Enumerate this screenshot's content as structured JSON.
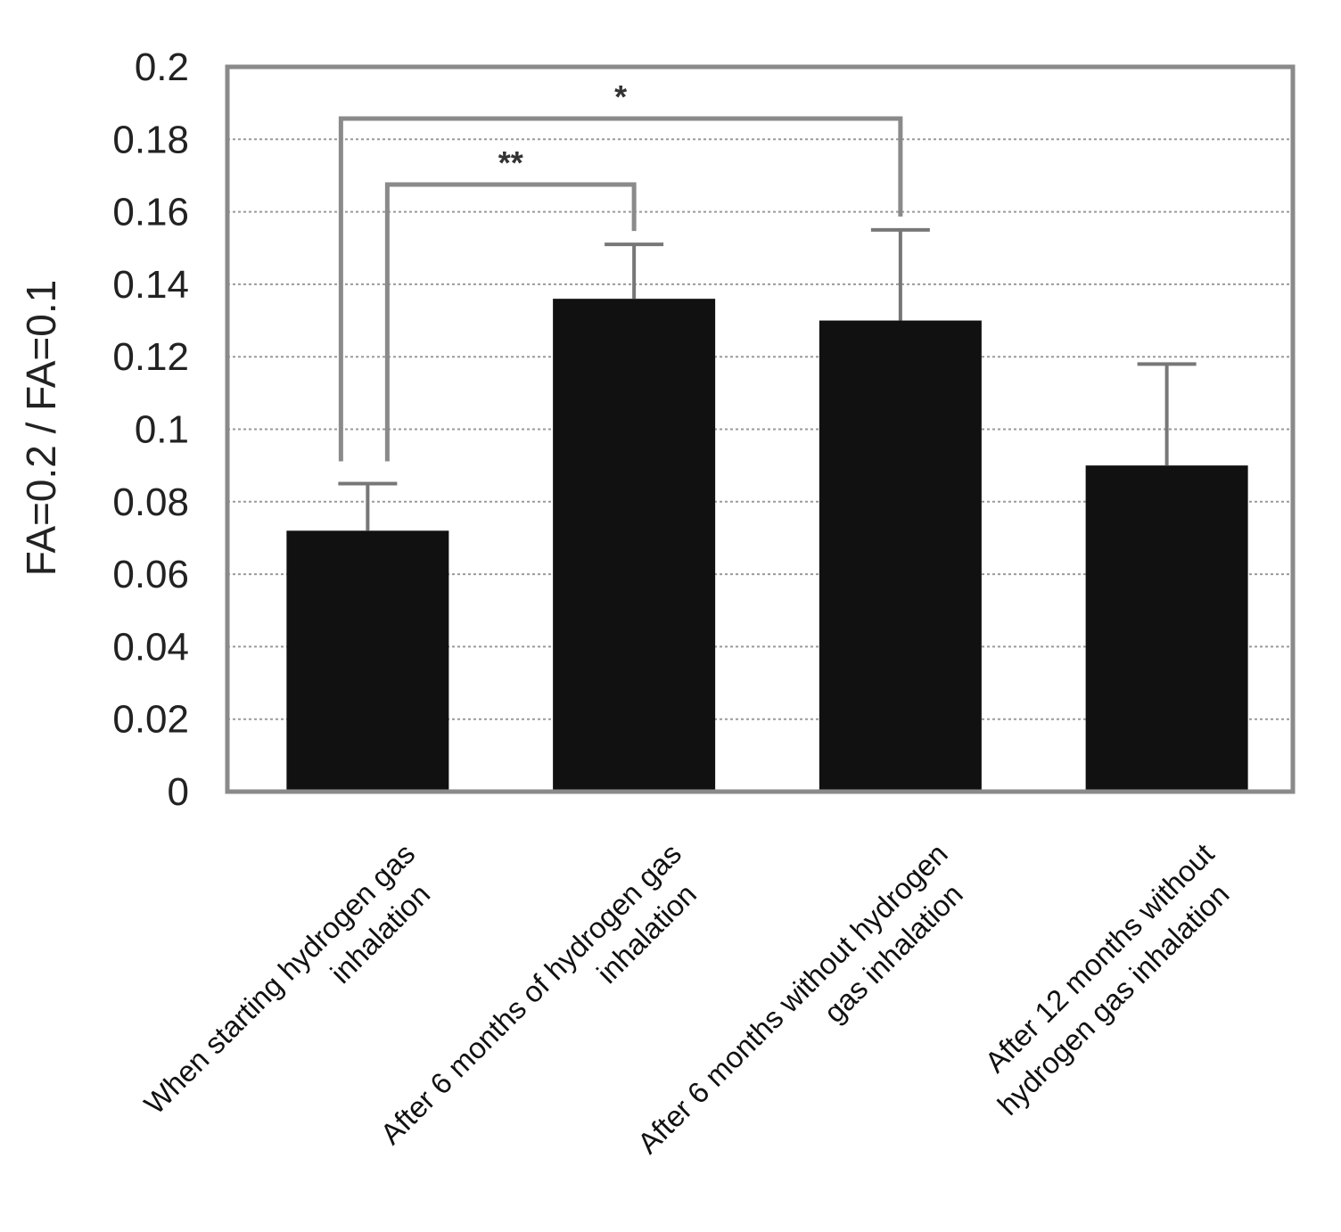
{
  "chart_data": {
    "type": "bar",
    "categories": [
      [
        "When starting hydrogen gas",
        "inhalation"
      ],
      [
        "After 6 months of hydrogen gas",
        "inhalation"
      ],
      [
        "After 6 months without hydrogen",
        "gas inhalation"
      ],
      [
        "After 12 months without",
        "hydrogen gas inhalation"
      ]
    ],
    "values": [
      0.072,
      0.136,
      0.13,
      0.09
    ],
    "errors": [
      0.013,
      0.015,
      0.025,
      0.028
    ],
    "ylabel": "FA=0.2 / FA=0.1",
    "xlabel": "",
    "ylim": [
      0,
      0.2
    ],
    "yticks": [
      "0",
      "0.02",
      "0.04",
      "0.06",
      "0.08",
      "0.1",
      "0.12",
      "0.14",
      "0.16",
      "0.18",
      "0.2"
    ],
    "grid": true,
    "bar_color": "#111111",
    "significance": [
      {
        "from": 0,
        "to": 1,
        "label": "**"
      },
      {
        "from": 0,
        "to": 2,
        "label": "*"
      }
    ]
  }
}
